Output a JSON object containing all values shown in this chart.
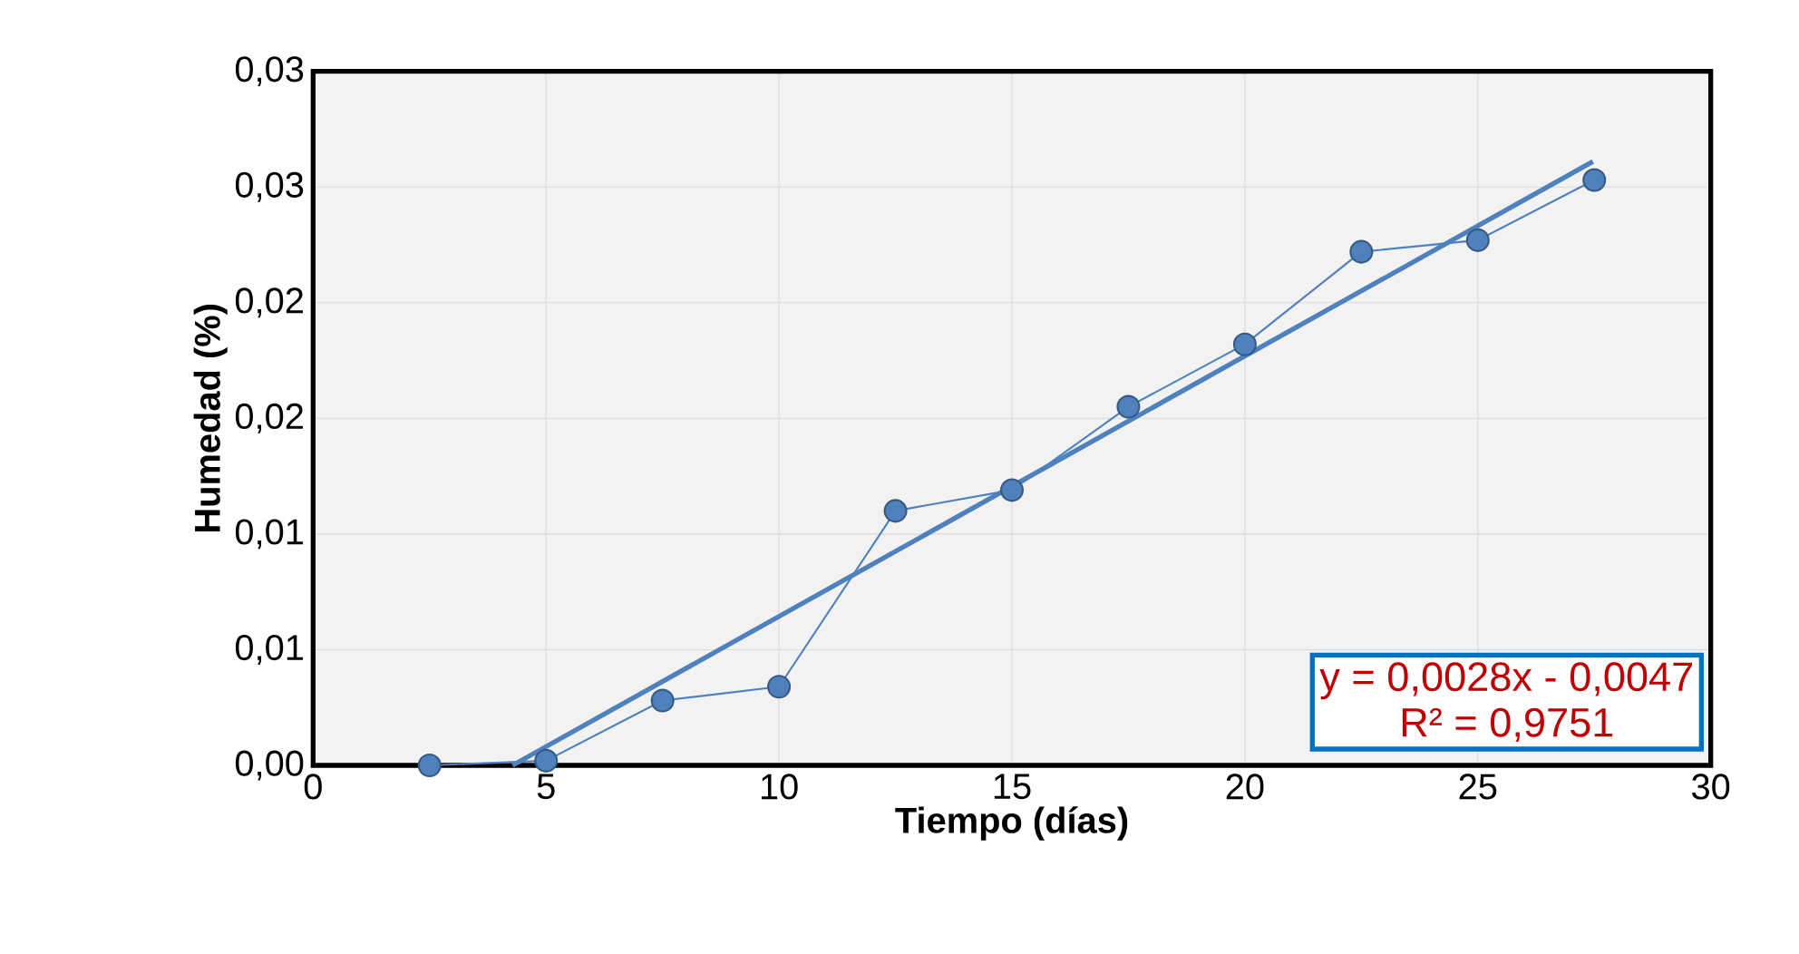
{
  "chart_data": {
    "type": "line",
    "xlabel": "Tiempo (días)",
    "ylabel": "Humedad (%)",
    "x": [
      2.5,
      5,
      7.5,
      10,
      12.5,
      15,
      17.5,
      20,
      22.5,
      25,
      27.5
    ],
    "series": [
      {
        "color": "#4f81bd",
        "marker": "circle",
        "values": [
          0,
          0.0002,
          0.0028,
          0.0034,
          0.011,
          0.0119,
          0.0155,
          0.0182,
          0.0222,
          0.0227,
          0.0253
        ]
      },
      {
        "type": "line",
        "color": "#4f81bd",
        "marker": "none",
        "x": [
          4.28,
          27.47
        ],
        "values": [
          0,
          0.0261
        ]
      }
    ],
    "xlim": [
      0,
      30
    ],
    "xticks": [
      0,
      5,
      10,
      15,
      20,
      25,
      30
    ],
    "ylim": [
      0,
      0.03
    ],
    "yticks": [
      {
        "value": 0,
        "label": "0,00"
      },
      {
        "value": 0.005,
        "label": "0,01"
      },
      {
        "value": 0.01,
        "label": "0,01"
      },
      {
        "value": 0.015,
        "label": "0,02"
      },
      {
        "value": 0.02,
        "label": "0,02"
      },
      {
        "value": 0.025,
        "label": "0,03"
      },
      {
        "value": 0.03,
        "label": "0,03"
      }
    ],
    "grid": true,
    "annotations": [
      "y = 0,0028x - 0,0047",
      "R² = 0,9751"
    ]
  }
}
